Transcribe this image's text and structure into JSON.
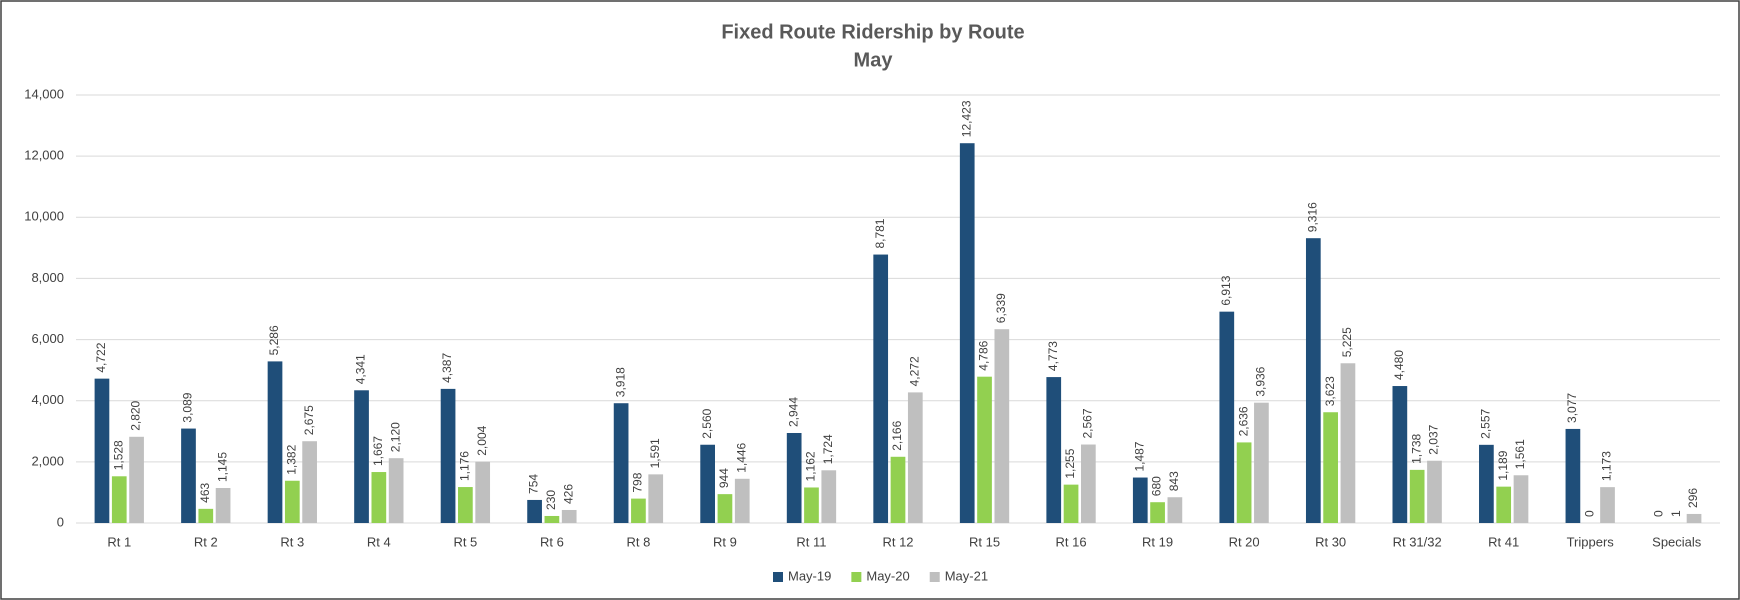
{
  "chart_data": {
    "type": "bar",
    "title": "Fixed Route Ridership by Route",
    "subtitle": "May",
    "categories": [
      "Rt 1",
      "Rt 2",
      "Rt 3",
      "Rt 4",
      "Rt 5",
      "Rt 6",
      "Rt 8",
      "Rt 9",
      "Rt 11",
      "Rt 12",
      "Rt 15",
      "Rt 16",
      "Rt 19",
      "Rt 20",
      "Rt 30",
      "Rt 31/32",
      "Rt 41",
      "Trippers",
      "Specials"
    ],
    "series": [
      {
        "name": "May-19",
        "color": "#1f4e79",
        "values": [
          4722,
          3089,
          5286,
          4341,
          4387,
          754,
          3918,
          2560,
          2944,
          8781,
          12423,
          4773,
          1487,
          6913,
          9316,
          4480,
          2557,
          3077,
          0
        ],
        "value_labels": [
          "4,722",
          "3,089",
          "5,286",
          "4,341",
          "4,387",
          "754",
          "3,918",
          "2,560",
          "2,944",
          "8,781",
          "12,423",
          "4,773",
          "1,487",
          "6,913",
          "9,316",
          "4,480",
          "2,557",
          "3,077",
          "0"
        ]
      },
      {
        "name": "May-20",
        "color": "#92d050",
        "values": [
          1528,
          463,
          1382,
          1667,
          1176,
          230,
          798,
          944,
          1162,
          2166,
          4786,
          1255,
          680,
          2636,
          3623,
          1738,
          1189,
          0,
          1
        ],
        "value_labels": [
          "1,528",
          "463",
          "1,382",
          "1,667",
          "1,176",
          "230",
          "798",
          "944",
          "1,162",
          "2,166",
          "4,786",
          "1,255",
          "680",
          "2,636",
          "3,623",
          "1,738",
          "1,189",
          "0",
          "1"
        ]
      },
      {
        "name": "May-21",
        "color": "#bfbfbf",
        "values": [
          2820,
          1145,
          2675,
          2120,
          2004,
          426,
          1591,
          1446,
          1724,
          4272,
          6339,
          2567,
          843,
          3936,
          5225,
          2037,
          1561,
          1173,
          296
        ],
        "value_labels": [
          "2,820",
          "1,145",
          "2,675",
          "2,120",
          "2,004",
          "426",
          "1,591",
          "1,446",
          "1,724",
          "4,272",
          "6,339",
          "2,567",
          "843",
          "3,936",
          "5,225",
          "2,037",
          "1,561",
          "1,173",
          "296"
        ]
      }
    ],
    "ylim": [
      0,
      14000
    ],
    "yticks": [
      0,
      {
        "value": 2000,
        "label": "2,000"
      },
      {
        "value": 4000,
        "label": "4,000"
      },
      {
        "value": 6000,
        "label": "6,000"
      },
      {
        "value": 8000,
        "label": "8,000"
      },
      {
        "value": 10000,
        "label": "10,000"
      },
      {
        "value": 12000,
        "label": "12,000"
      },
      {
        "value": 14000,
        "label": "14,000"
      }
    ],
    "grid": true,
    "legend": "bottom"
  }
}
